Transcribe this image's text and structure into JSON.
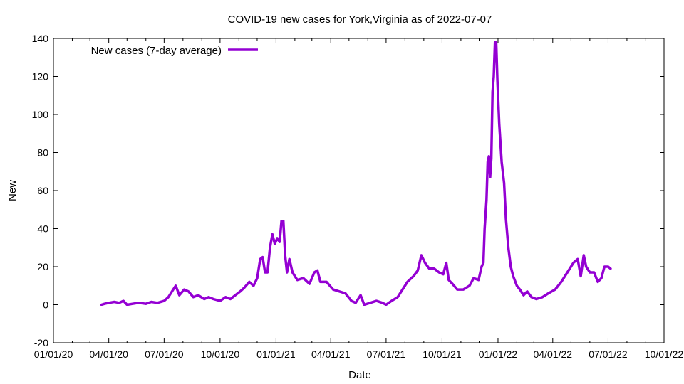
{
  "chart_data": {
    "type": "line",
    "title": "COVID-19 new cases for York,Virginia as of 2022-07-07",
    "xlabel": "Date",
    "ylabel": "New",
    "ylim": [
      -20,
      140
    ],
    "yticks": [
      -20,
      0,
      20,
      40,
      60,
      80,
      100,
      120,
      140
    ],
    "xlim": [
      "2020-01-01",
      "2022-10-01"
    ],
    "xticks": [
      {
        "date": "2020-01-01",
        "label": "01/01/20"
      },
      {
        "date": "2020-04-01",
        "label": "04/01/20"
      },
      {
        "date": "2020-07-01",
        "label": "07/01/20"
      },
      {
        "date": "2020-10-01",
        "label": "10/01/20"
      },
      {
        "date": "2021-01-01",
        "label": "01/01/21"
      },
      {
        "date": "2021-04-01",
        "label": "04/01/21"
      },
      {
        "date": "2021-07-01",
        "label": "07/01/21"
      },
      {
        "date": "2021-10-01",
        "label": "10/01/21"
      },
      {
        "date": "2022-01-01",
        "label": "01/01/22"
      },
      {
        "date": "2022-04-01",
        "label": "04/01/22"
      },
      {
        "date": "2022-07-01",
        "label": "07/01/22"
      },
      {
        "date": "2022-10-01",
        "label": "10/01/22"
      }
    ],
    "grid": false,
    "legend_position": "top-left",
    "series": [
      {
        "name": "New cases (7-day average)",
        "color": "#9400d3",
        "points": [
          [
            "2020-03-20",
            0
          ],
          [
            "2020-03-25",
            0.5
          ],
          [
            "2020-04-01",
            1
          ],
          [
            "2020-04-10",
            1.5
          ],
          [
            "2020-04-18",
            1
          ],
          [
            "2020-04-25",
            2
          ],
          [
            "2020-05-01",
            0
          ],
          [
            "2020-05-10",
            0.5
          ],
          [
            "2020-05-20",
            1
          ],
          [
            "2020-06-01",
            0.5
          ],
          [
            "2020-06-10",
            1.5
          ],
          [
            "2020-06-20",
            1
          ],
          [
            "2020-07-01",
            2
          ],
          [
            "2020-07-08",
            4
          ],
          [
            "2020-07-14",
            7
          ],
          [
            "2020-07-20",
            10
          ],
          [
            "2020-07-26",
            5
          ],
          [
            "2020-08-03",
            8
          ],
          [
            "2020-08-10",
            7
          ],
          [
            "2020-08-18",
            4
          ],
          [
            "2020-08-26",
            5
          ],
          [
            "2020-09-05",
            3
          ],
          [
            "2020-09-12",
            4
          ],
          [
            "2020-09-20",
            3
          ],
          [
            "2020-10-01",
            2
          ],
          [
            "2020-10-10",
            4
          ],
          [
            "2020-10-18",
            3
          ],
          [
            "2020-10-26",
            5
          ],
          [
            "2020-11-03",
            7
          ],
          [
            "2020-11-10",
            9
          ],
          [
            "2020-11-18",
            12
          ],
          [
            "2020-11-25",
            10
          ],
          [
            "2020-12-01",
            14
          ],
          [
            "2020-12-06",
            24
          ],
          [
            "2020-12-10",
            25
          ],
          [
            "2020-12-14",
            17
          ],
          [
            "2020-12-18",
            17
          ],
          [
            "2020-12-22",
            30
          ],
          [
            "2020-12-26",
            37
          ],
          [
            "2020-12-30",
            32
          ],
          [
            "2021-01-03",
            35
          ],
          [
            "2021-01-07",
            33
          ],
          [
            "2021-01-10",
            44
          ],
          [
            "2021-01-13",
            44
          ],
          [
            "2021-01-16",
            26
          ],
          [
            "2021-01-19",
            17
          ],
          [
            "2021-01-23",
            24
          ],
          [
            "2021-01-28",
            17
          ],
          [
            "2021-02-05",
            13
          ],
          [
            "2021-02-15",
            14
          ],
          [
            "2021-02-25",
            11
          ],
          [
            "2021-03-05",
            17
          ],
          [
            "2021-03-10",
            18
          ],
          [
            "2021-03-15",
            12
          ],
          [
            "2021-03-25",
            12
          ],
          [
            "2021-04-05",
            8
          ],
          [
            "2021-04-15",
            7
          ],
          [
            "2021-04-25",
            6
          ],
          [
            "2021-05-05",
            2
          ],
          [
            "2021-05-12",
            1
          ],
          [
            "2021-05-20",
            5
          ],
          [
            "2021-05-26",
            0
          ],
          [
            "2021-06-05",
            1
          ],
          [
            "2021-06-15",
            2
          ],
          [
            "2021-06-25",
            1
          ],
          [
            "2021-07-01",
            0
          ],
          [
            "2021-07-10",
            2
          ],
          [
            "2021-07-20",
            4
          ],
          [
            "2021-07-28",
            8
          ],
          [
            "2021-08-05",
            12
          ],
          [
            "2021-08-15",
            15
          ],
          [
            "2021-08-22",
            18
          ],
          [
            "2021-08-28",
            26
          ],
          [
            "2021-09-03",
            22
          ],
          [
            "2021-09-10",
            19
          ],
          [
            "2021-09-18",
            19
          ],
          [
            "2021-09-26",
            17
          ],
          [
            "2021-10-03",
            16
          ],
          [
            "2021-10-08",
            22
          ],
          [
            "2021-10-12",
            13
          ],
          [
            "2021-10-18",
            11
          ],
          [
            "2021-10-26",
            8
          ],
          [
            "2021-11-05",
            8
          ],
          [
            "2021-11-15",
            10
          ],
          [
            "2021-11-22",
            14
          ],
          [
            "2021-11-30",
            13
          ],
          [
            "2021-12-05",
            20
          ],
          [
            "2021-12-08",
            22
          ],
          [
            "2021-12-10",
            40
          ],
          [
            "2021-12-13",
            55
          ],
          [
            "2021-12-15",
            75
          ],
          [
            "2021-12-17",
            78
          ],
          [
            "2021-12-19",
            67
          ],
          [
            "2021-12-21",
            77
          ],
          [
            "2021-12-23",
            112
          ],
          [
            "2021-12-25",
            120
          ],
          [
            "2021-12-27",
            138
          ],
          [
            "2021-12-29",
            138
          ],
          [
            "2021-12-31",
            118
          ],
          [
            "2022-01-03",
            95
          ],
          [
            "2022-01-07",
            75
          ],
          [
            "2022-01-11",
            64
          ],
          [
            "2022-01-14",
            45
          ],
          [
            "2022-01-18",
            30
          ],
          [
            "2022-01-22",
            20
          ],
          [
            "2022-01-26",
            15
          ],
          [
            "2022-02-01",
            10
          ],
          [
            "2022-02-06",
            8
          ],
          [
            "2022-02-12",
            5
          ],
          [
            "2022-02-18",
            7
          ],
          [
            "2022-02-25",
            4
          ],
          [
            "2022-03-05",
            3
          ],
          [
            "2022-03-15",
            4
          ],
          [
            "2022-03-25",
            6
          ],
          [
            "2022-04-05",
            8
          ],
          [
            "2022-04-15",
            12
          ],
          [
            "2022-04-25",
            17
          ],
          [
            "2022-05-05",
            22
          ],
          [
            "2022-05-12",
            24
          ],
          [
            "2022-05-17",
            15
          ],
          [
            "2022-05-22",
            26
          ],
          [
            "2022-05-26",
            20
          ],
          [
            "2022-06-01",
            17
          ],
          [
            "2022-06-08",
            17
          ],
          [
            "2022-06-14",
            12
          ],
          [
            "2022-06-20",
            14
          ],
          [
            "2022-06-25",
            20
          ],
          [
            "2022-07-01",
            20
          ],
          [
            "2022-07-05",
            19
          ]
        ]
      }
    ]
  }
}
